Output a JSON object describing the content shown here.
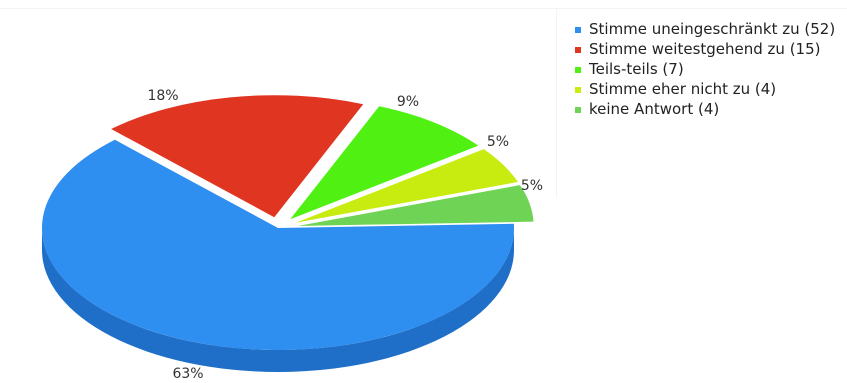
{
  "chart_data": {
    "type": "pie",
    "values": [
      52,
      15,
      7,
      4,
      4
    ],
    "data_labels": [
      "63%",
      "18%",
      "9%",
      "5%",
      "5%"
    ],
    "legend": [
      "Stimme uneingeschränkt zu (52)",
      "Stimme weitestgehend zu (15)",
      "Teils-teils (7)",
      "Stimme eher nicht zu (4)",
      "keine Antwort (4)"
    ],
    "colors": [
      "#2f8ff0",
      "#e03520",
      "#4ff012",
      "#c8ec10",
      "#6fd456"
    ],
    "side_colors": [
      "#1f6fc8",
      "#b82a18",
      "#3cc00c",
      "#a3c20c",
      "#55ad42"
    ],
    "exploded": [
      false,
      true,
      true,
      true,
      true
    ],
    "legend_position": "right",
    "style": "3d"
  }
}
